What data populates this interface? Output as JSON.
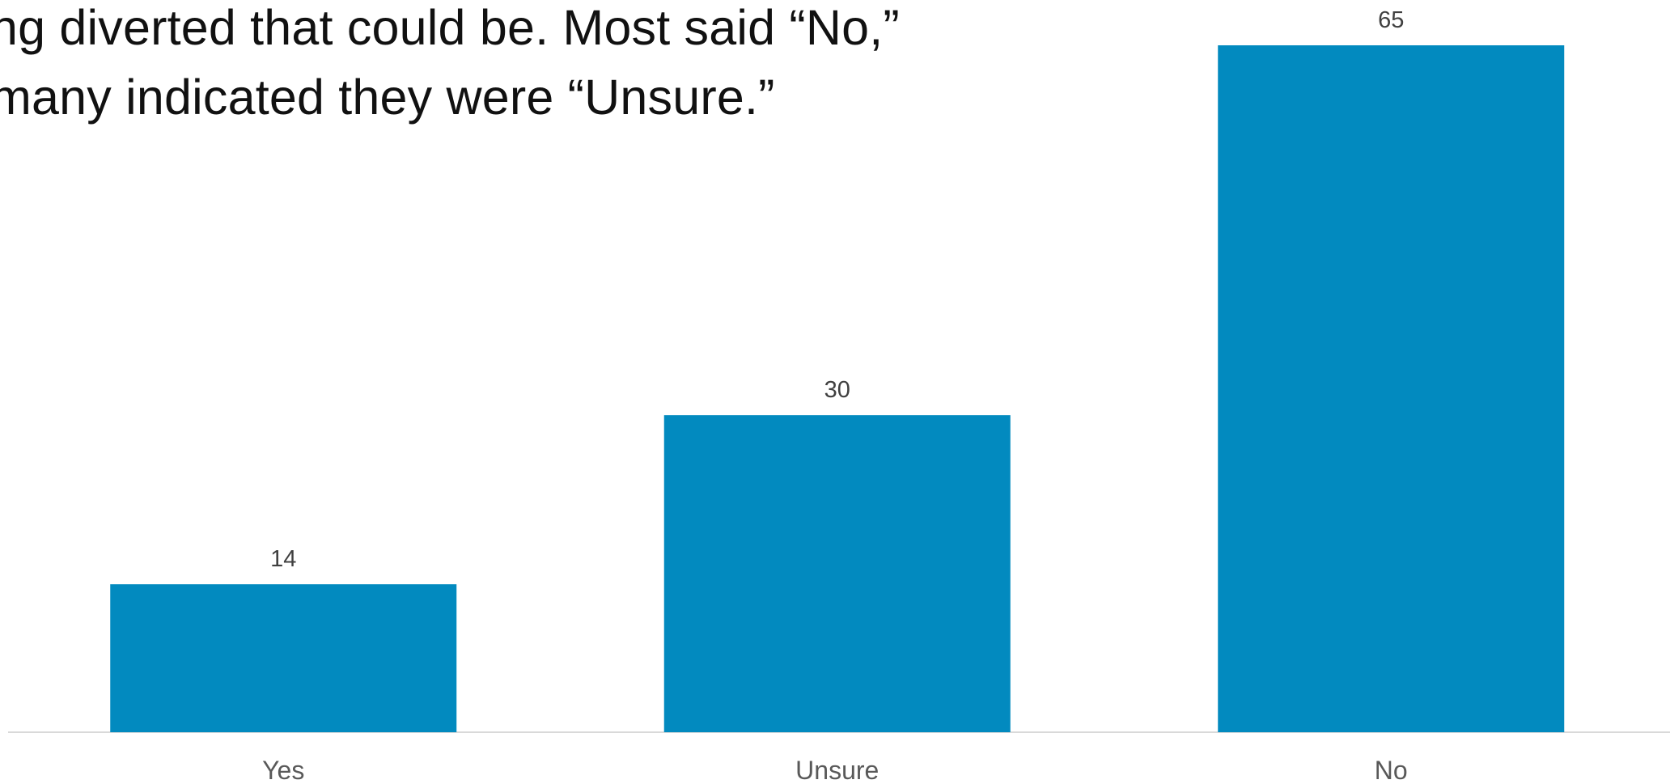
{
  "caption": {
    "line1": "ng diverted that could be. Most said “No,”",
    "line2": "many indicated they were “Unsure.”"
  },
  "chart_data": {
    "type": "bar",
    "categories": [
      "Yes",
      "Unsure",
      "No"
    ],
    "values": [
      14,
      30,
      65
    ],
    "title": "",
    "xlabel": "",
    "ylabel": "",
    "ylim": [
      0,
      65
    ],
    "grid": false,
    "legend": "none",
    "bar_color": "#028abf"
  }
}
